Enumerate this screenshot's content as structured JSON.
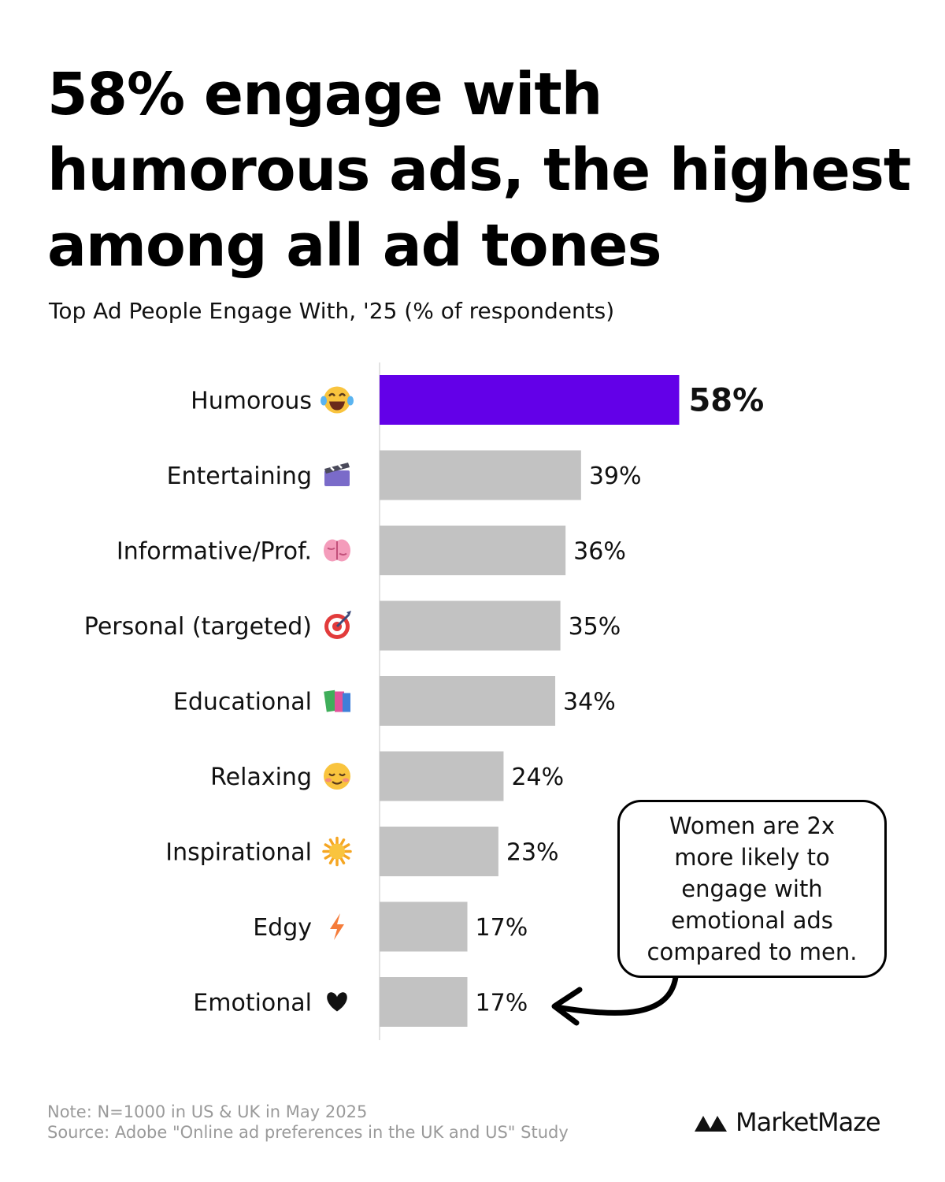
{
  "title": "58% engage with humorous ads, the highest among all ad tones",
  "subtitle": "Top Ad People Engage With, '25 (% of respondents)",
  "chart_data": {
    "type": "bar",
    "orientation": "horizontal",
    "subtitle": "Top Ad People Engage With, '25 (% of respondents)",
    "categories": [
      "Humorous",
      "Entertaining",
      "Informative/Prof.",
      "Personal (targeted)",
      "Educational",
      "Relaxing",
      "Inspirational",
      "Edgy",
      "Emotional"
    ],
    "icons": [
      "laughing-tears-icon",
      "clapperboard-icon",
      "brain-icon",
      "dart-target-icon",
      "books-icon",
      "relieved-face-icon",
      "sun-icon",
      "lightning-icon",
      "heart-icon"
    ],
    "values": [
      58,
      39,
      36,
      35,
      34,
      24,
      23,
      17,
      17
    ],
    "value_labels": [
      "58%",
      "39%",
      "36%",
      "35%",
      "34%",
      "24%",
      "23%",
      "17%",
      "17%"
    ],
    "highlight_index": 0,
    "colors": {
      "highlight": "#6300E8",
      "default": "#C2C2C2",
      "axis": "#E2E2E2"
    },
    "xlim": [
      0,
      100
    ],
    "grid": false,
    "legend": "none"
  },
  "annotation": {
    "text": "Women are 2x more likely to engage with emotional ads compared to men.",
    "points_to": "Emotional"
  },
  "footer": {
    "note": "Note: N=1000 in US & UK in May 2025",
    "source": "Source: Adobe \"Online ad preferences in the UK and US\" Study"
  },
  "brand": {
    "name": "MarketMaze",
    "logo_icon": "double-mountain-logo-icon"
  }
}
